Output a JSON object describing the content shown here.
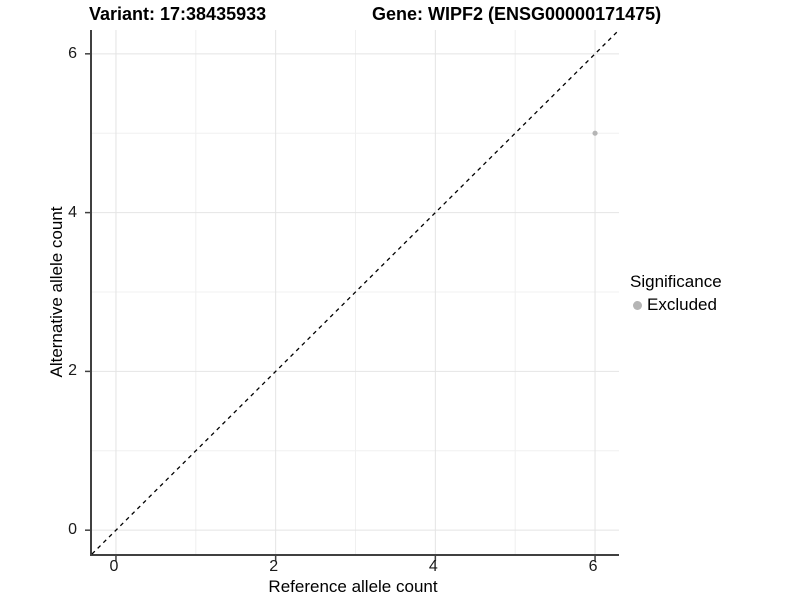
{
  "titles": {
    "variant": "Variant: 17:38435933",
    "gene": "Gene: WIPF2 (ENSG00000171475)"
  },
  "legend": {
    "title": "Significance",
    "items": [
      {
        "label": "Excluded",
        "color": "#b5b5b5"
      }
    ]
  },
  "axes": {
    "x": {
      "title": "Reference allele count"
    },
    "y": {
      "title": "Alternative allele count"
    }
  },
  "colors": {
    "background": "#ffffff",
    "grid_major": "#e4e4e4",
    "grid_minor": "#f0f0f0",
    "axis_line": "#404040",
    "tick_mark": "#404040",
    "tick_label": "#1a1a1a",
    "identity_line": "#000000",
    "point": "#b5b5b5"
  },
  "chart_data": {
    "type": "scatter",
    "title": "Variant: 17:38435933 — Gene: WIPF2 (ENSG00000171475)",
    "xlabel": "Reference allele count",
    "ylabel": "Alternative allele count",
    "xlim": [
      -0.3,
      6.3
    ],
    "ylim": [
      -0.3,
      6.3
    ],
    "x_ticks": [
      0,
      2,
      4,
      6
    ],
    "y_ticks": [
      0,
      2,
      4,
      6
    ],
    "x_minor_ticks": [
      1,
      3,
      5
    ],
    "y_minor_ticks": [
      1,
      3,
      5
    ],
    "grid": true,
    "legend_position": "right",
    "legend_title": "Significance",
    "reference_line": {
      "type": "identity",
      "slope": 1,
      "intercept": 0,
      "style": "dashed",
      "color": "#000000"
    },
    "series": [
      {
        "name": "Excluded",
        "color": "#b5b5b5",
        "points": [
          {
            "x": 6,
            "y": 5
          }
        ]
      }
    ]
  }
}
